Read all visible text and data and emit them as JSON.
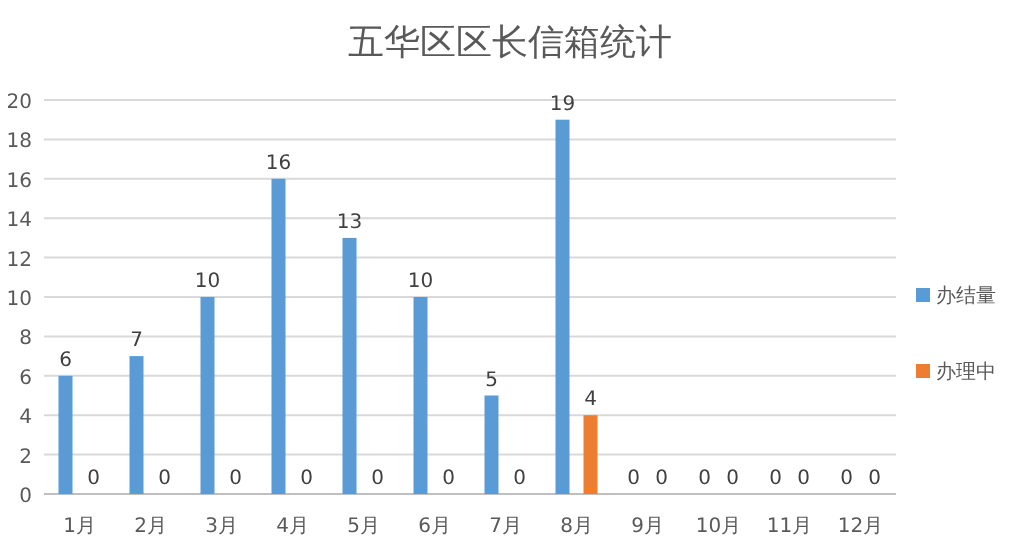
{
  "chart_data": {
    "type": "bar",
    "title": "五华区区长信箱统计",
    "categories": [
      "1月",
      "2月",
      "3月",
      "4月",
      "5月",
      "6月",
      "7月",
      "8月",
      "9月",
      "10月",
      "11月",
      "12月"
    ],
    "series": [
      {
        "name": "办结量",
        "color": "#5b9bd5",
        "values": [
          6,
          7,
          10,
          16,
          13,
          10,
          5,
          19,
          0,
          0,
          0,
          0
        ]
      },
      {
        "name": "办理中",
        "color": "#ed7d31",
        "values": [
          0,
          0,
          0,
          0,
          0,
          0,
          0,
          4,
          0,
          0,
          0,
          0
        ]
      }
    ],
    "ylim": [
      0,
      20
    ],
    "yticks": [
      0,
      2,
      4,
      6,
      8,
      10,
      12,
      14,
      16,
      18,
      20
    ],
    "grid": "y",
    "legend": "right",
    "data_labels": true
  }
}
